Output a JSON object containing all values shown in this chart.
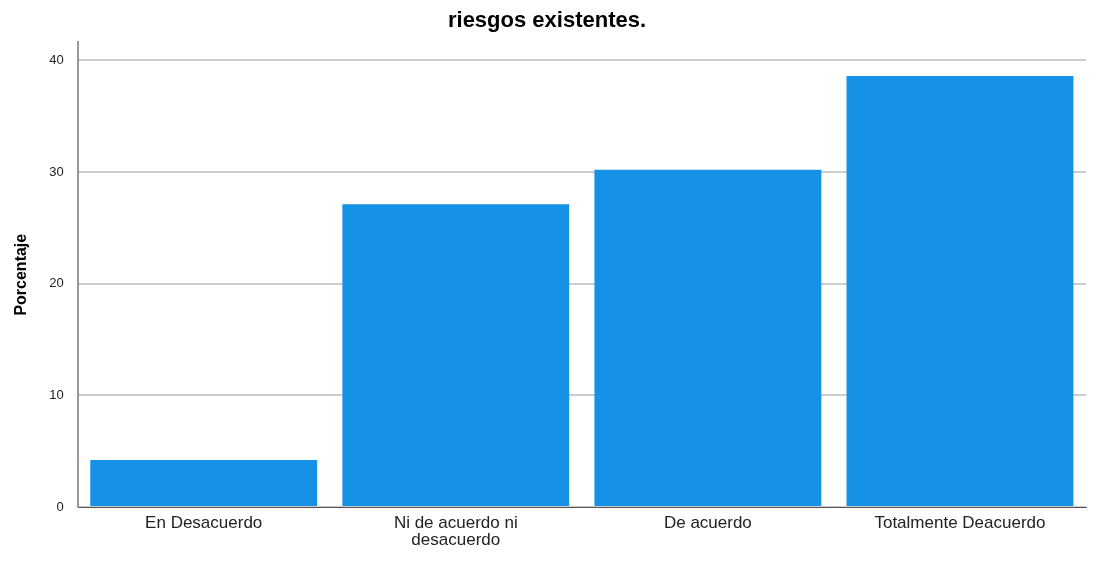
{
  "chart_data": {
    "type": "bar",
    "title": "riesgos existentes.",
    "ylabel": "Porcentaje",
    "categories": [
      "En Desacuerdo",
      "Ni de acuerdo ni desacuerdo",
      "De acuerdo",
      "Totalmente Deacuerdo"
    ],
    "values": [
      4.2,
      27.1,
      30.2,
      38.6
    ],
    "color": "#1591e6",
    "ylim": [
      0,
      41.6
    ],
    "yticks": [
      0,
      10,
      20,
      30,
      40
    ],
    "grid": "y",
    "legend": false
  }
}
